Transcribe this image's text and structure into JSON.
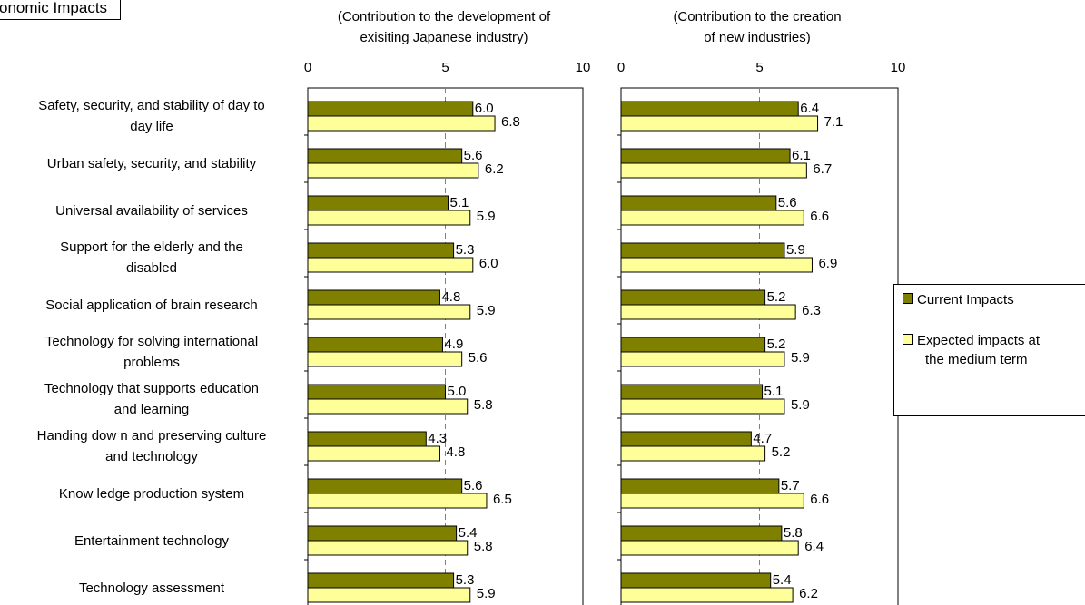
{
  "badge_label": "onomic Impacts",
  "panels": [
    {
      "subtitle_line1": "(Contribution to the development of",
      "subtitle_line2": "exisiting Japanese industry)"
    },
    {
      "subtitle_line1": "(Contribution to the creation",
      "subtitle_line2": "of new industries)"
    }
  ],
  "category_labels": [
    [
      "Safety, security, and stability of day to",
      "day life"
    ],
    [
      "Urban safety, security, and stability"
    ],
    [
      "Universal availability of services"
    ],
    [
      "Support for the elderly and the",
      "disabled"
    ],
    [
      "Social application of brain research"
    ],
    [
      "Technology for solving international",
      "problems"
    ],
    [
      "Technology that supports education",
      "and learning"
    ],
    [
      "Handing dow n and preserving culture",
      "and technology"
    ],
    [
      "Know ledge production system"
    ],
    [
      "Entertainment technology"
    ],
    [
      "Technology assessment"
    ]
  ],
  "legend": {
    "current": "Current Impacts",
    "expected_line1": "Expected impacts at",
    "expected_line2": "the medium term"
  },
  "colors": {
    "current": "#808000",
    "expected": "#ffff99",
    "gridline": "#808080"
  },
  "chart_data": [
    {
      "type": "bar",
      "orientation": "horizontal",
      "title": "(Contribution to the development of exisiting Japanese industry)",
      "categories": [
        "Safety, security, and stability of day to day life",
        "Urban safety, security, and stability",
        "Universal availability of services",
        "Support for the elderly and the disabled",
        "Social application of brain research",
        "Technology for solving international problems",
        "Technology that supports education and learning",
        "Handing dow n and preserving culture and technology",
        "Know ledge production system",
        "Entertainment technology",
        "Technology assessment"
      ],
      "series": [
        {
          "name": "Current Impacts",
          "values": [
            6.0,
            5.6,
            5.1,
            5.3,
            4.8,
            4.9,
            5.0,
            4.3,
            5.6,
            5.4,
            5.3
          ]
        },
        {
          "name": "Expected impacts at the medium term",
          "values": [
            6.8,
            6.2,
            5.9,
            6.0,
            5.9,
            5.6,
            5.8,
            4.8,
            6.5,
            5.8,
            5.9
          ]
        }
      ],
      "xlim": [
        0,
        10
      ],
      "xticks": [
        "0",
        "5",
        "10"
      ],
      "value_labels": {
        "current": [
          "6.0",
          "5.6",
          "5.1",
          "5.3",
          "4.8",
          "4.9",
          "5.0",
          "4.3",
          "5.6",
          "5.4",
          "5.3"
        ],
        "expected": [
          "6.8",
          "6.2",
          "5.9",
          "6.0",
          "5.9",
          "5.6",
          "5.8",
          "4.8",
          "6.5",
          "5.8",
          "5.9"
        ]
      },
      "grid": "vertical dashed at 5",
      "legend": "right"
    },
    {
      "type": "bar",
      "orientation": "horizontal",
      "title": "(Contribution to the creation of new industries)",
      "categories": [
        "Safety, security, and stability of day to day life",
        "Urban safety, security, and stability",
        "Universal availability of services",
        "Support for the elderly and the disabled",
        "Social application of brain research",
        "Technology for solving international problems",
        "Technology that supports education and learning",
        "Handing dow n and preserving culture and technology",
        "Know ledge production system",
        "Entertainment technology",
        "Technology assessment"
      ],
      "series": [
        {
          "name": "Current Impacts",
          "values": [
            6.4,
            6.1,
            5.6,
            5.9,
            5.2,
            5.2,
            5.1,
            4.7,
            5.7,
            5.8,
            5.4
          ]
        },
        {
          "name": "Expected impacts at the medium term",
          "values": [
            7.1,
            6.7,
            6.6,
            6.9,
            6.3,
            5.9,
            5.9,
            5.2,
            6.6,
            6.4,
            6.2
          ]
        }
      ],
      "xlim": [
        0,
        10
      ],
      "xticks": [
        "0",
        "5",
        "10"
      ],
      "value_labels": {
        "current": [
          "6.4",
          "6.1",
          "5.6",
          "5.9",
          "5.2",
          "5.2",
          "5.1",
          "4.7",
          "5.7",
          "5.8",
          "5.4"
        ],
        "expected": [
          "7.1",
          "6.7",
          "6.6",
          "6.9",
          "6.3",
          "5.9",
          "5.9",
          "5.2",
          "6.6",
          "6.4",
          "6.2"
        ]
      },
      "grid": "vertical dashed at 5",
      "legend": "right"
    }
  ]
}
